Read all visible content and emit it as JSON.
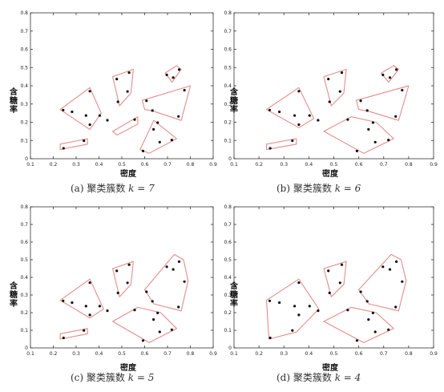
{
  "chart_data": [
    {
      "type": "scatter",
      "caption": "(a) 聚类簇数",
      "k": "k = 7",
      "xlabel": "密度",
      "ylabel": "含糖率",
      "xlim": [
        0.1,
        0.9
      ],
      "ylim": [
        0,
        0.8
      ],
      "xticks": [
        "0.1",
        "0.2",
        "0.3",
        "0.4",
        "0.5",
        "0.6",
        "0.7",
        "0.8",
        "0.9"
      ],
      "yticks": [
        "0",
        "0.1",
        "0.2",
        "0.3",
        "0.4",
        "0.5",
        "0.6",
        "0.7",
        "0.8"
      ],
      "points": [
        [
          0.243,
          0.267
        ],
        [
          0.245,
          0.057
        ],
        [
          0.282,
          0.257
        ],
        [
          0.334,
          0.099
        ],
        [
          0.343,
          0.237
        ],
        [
          0.36,
          0.37
        ],
        [
          0.36,
          0.187
        ],
        [
          0.403,
          0.237
        ],
        [
          0.437,
          0.211
        ],
        [
          0.478,
          0.437
        ],
        [
          0.483,
          0.312
        ],
        [
          0.525,
          0.369
        ],
        [
          0.532,
          0.472
        ],
        [
          0.556,
          0.215
        ],
        [
          0.593,
          0.042
        ],
        [
          0.608,
          0.318
        ],
        [
          0.634,
          0.264
        ],
        [
          0.639,
          0.161
        ],
        [
          0.657,
          0.198
        ],
        [
          0.666,
          0.091
        ],
        [
          0.697,
          0.46
        ],
        [
          0.719,
          0.103
        ],
        [
          0.725,
          0.445
        ],
        [
          0.748,
          0.232
        ],
        [
          0.751,
          0.489
        ],
        [
          0.774,
          0.376
        ]
      ],
      "clusters": [
        [
          [
            0.23,
            0.27
          ],
          [
            0.36,
            0.39
          ],
          [
            0.41,
            0.25
          ],
          [
            0.36,
            0.16
          ]
        ],
        [
          [
            0.23,
            0.05
          ],
          [
            0.35,
            0.08
          ],
          [
            0.35,
            0.11
          ],
          [
            0.23,
            0.08
          ]
        ],
        [
          [
            0.46,
            0.45
          ],
          [
            0.55,
            0.49
          ],
          [
            0.54,
            0.36
          ],
          [
            0.49,
            0.29
          ]
        ],
        [
          [
            0.46,
            0.15
          ],
          [
            0.57,
            0.23
          ],
          [
            0.57,
            0.19
          ],
          [
            0.48,
            0.13
          ]
        ],
        [
          [
            0.59,
            0.32
          ],
          [
            0.8,
            0.4
          ],
          [
            0.76,
            0.21
          ],
          [
            0.64,
            0.26
          ],
          [
            0.6,
            0.27
          ]
        ],
        [
          [
            0.58,
            0.05
          ],
          [
            0.64,
            0.21
          ],
          [
            0.74,
            0.11
          ],
          [
            0.62,
            0.03
          ]
        ],
        [
          [
            0.69,
            0.47
          ],
          [
            0.74,
            0.51
          ],
          [
            0.76,
            0.49
          ],
          [
            0.72,
            0.42
          ]
        ]
      ]
    },
    {
      "type": "scatter",
      "caption": "(b) 聚类簇数",
      "k": "k = 6",
      "xlabel": "密度",
      "ylabel": "含糖率",
      "xlim": [
        0.1,
        0.9
      ],
      "ylim": [
        0,
        0.8
      ],
      "xticks": [
        "0.1",
        "0.2",
        "0.3",
        "0.4",
        "0.5",
        "0.6",
        "0.7",
        "0.8",
        "0.9"
      ],
      "yticks": [
        "0",
        "0.1",
        "0.2",
        "0.3",
        "0.4",
        "0.5",
        "0.6",
        "0.7",
        "0.8"
      ],
      "points": [
        [
          0.243,
          0.267
        ],
        [
          0.245,
          0.057
        ],
        [
          0.282,
          0.257
        ],
        [
          0.334,
          0.099
        ],
        [
          0.343,
          0.237
        ],
        [
          0.36,
          0.37
        ],
        [
          0.36,
          0.187
        ],
        [
          0.403,
          0.237
        ],
        [
          0.437,
          0.211
        ],
        [
          0.478,
          0.437
        ],
        [
          0.483,
          0.312
        ],
        [
          0.525,
          0.369
        ],
        [
          0.532,
          0.472
        ],
        [
          0.556,
          0.215
        ],
        [
          0.593,
          0.042
        ],
        [
          0.608,
          0.318
        ],
        [
          0.634,
          0.264
        ],
        [
          0.639,
          0.161
        ],
        [
          0.657,
          0.198
        ],
        [
          0.666,
          0.091
        ],
        [
          0.697,
          0.46
        ],
        [
          0.719,
          0.103
        ],
        [
          0.725,
          0.445
        ],
        [
          0.748,
          0.232
        ],
        [
          0.751,
          0.489
        ],
        [
          0.774,
          0.376
        ]
      ],
      "clusters": [
        [
          [
            0.23,
            0.27
          ],
          [
            0.36,
            0.39
          ],
          [
            0.42,
            0.22
          ],
          [
            0.36,
            0.17
          ]
        ],
        [
          [
            0.23,
            0.05
          ],
          [
            0.35,
            0.08
          ],
          [
            0.35,
            0.11
          ],
          [
            0.23,
            0.08
          ]
        ],
        [
          [
            0.46,
            0.45
          ],
          [
            0.55,
            0.49
          ],
          [
            0.54,
            0.36
          ],
          [
            0.49,
            0.29
          ]
        ],
        [
          [
            0.46,
            0.15
          ],
          [
            0.57,
            0.23
          ],
          [
            0.67,
            0.2
          ],
          [
            0.74,
            0.11
          ],
          [
            0.62,
            0.03
          ]
        ],
        [
          [
            0.59,
            0.32
          ],
          [
            0.8,
            0.4
          ],
          [
            0.76,
            0.21
          ],
          [
            0.64,
            0.26
          ],
          [
            0.6,
            0.27
          ]
        ],
        [
          [
            0.69,
            0.47
          ],
          [
            0.74,
            0.51
          ],
          [
            0.76,
            0.49
          ],
          [
            0.72,
            0.42
          ]
        ]
      ]
    },
    {
      "type": "scatter",
      "caption": "(c) 聚类簇数",
      "k": "k = 5",
      "xlabel": "密度",
      "ylabel": "含糖率",
      "xlim": [
        0.1,
        0.9
      ],
      "ylim": [
        0,
        0.8
      ],
      "xticks": [
        "0.1",
        "0.2",
        "0.3",
        "0.4",
        "0.5",
        "0.6",
        "0.7",
        "0.8",
        "0.9"
      ],
      "yticks": [
        "0",
        "0.1",
        "0.2",
        "0.3",
        "0.4",
        "0.5",
        "0.6",
        "0.7",
        "0.8"
      ],
      "points": [
        [
          0.243,
          0.267
        ],
        [
          0.245,
          0.057
        ],
        [
          0.282,
          0.257
        ],
        [
          0.334,
          0.099
        ],
        [
          0.343,
          0.237
        ],
        [
          0.36,
          0.37
        ],
        [
          0.36,
          0.187
        ],
        [
          0.403,
          0.237
        ],
        [
          0.437,
          0.211
        ],
        [
          0.478,
          0.437
        ],
        [
          0.483,
          0.312
        ],
        [
          0.525,
          0.369
        ],
        [
          0.532,
          0.472
        ],
        [
          0.556,
          0.215
        ],
        [
          0.593,
          0.042
        ],
        [
          0.608,
          0.318
        ],
        [
          0.634,
          0.264
        ],
        [
          0.639,
          0.161
        ],
        [
          0.657,
          0.198
        ],
        [
          0.666,
          0.091
        ],
        [
          0.697,
          0.46
        ],
        [
          0.719,
          0.103
        ],
        [
          0.725,
          0.445
        ],
        [
          0.748,
          0.232
        ],
        [
          0.751,
          0.489
        ],
        [
          0.774,
          0.376
        ]
      ],
      "clusters": [
        [
          [
            0.23,
            0.27
          ],
          [
            0.36,
            0.39
          ],
          [
            0.42,
            0.22
          ],
          [
            0.36,
            0.17
          ]
        ],
        [
          [
            0.23,
            0.05
          ],
          [
            0.35,
            0.08
          ],
          [
            0.35,
            0.11
          ],
          [
            0.23,
            0.08
          ]
        ],
        [
          [
            0.46,
            0.45
          ],
          [
            0.55,
            0.49
          ],
          [
            0.54,
            0.36
          ],
          [
            0.49,
            0.29
          ]
        ],
        [
          [
            0.46,
            0.15
          ],
          [
            0.57,
            0.23
          ],
          [
            0.67,
            0.2
          ],
          [
            0.74,
            0.11
          ],
          [
            0.62,
            0.03
          ]
        ],
        [
          [
            0.6,
            0.33
          ],
          [
            0.73,
            0.53
          ],
          [
            0.77,
            0.5
          ],
          [
            0.79,
            0.38
          ],
          [
            0.76,
            0.21
          ],
          [
            0.64,
            0.25
          ]
        ]
      ]
    },
    {
      "type": "scatter",
      "caption": "(d) 聚类簇数",
      "k": "k = 4",
      "xlabel": "密度",
      "ylabel": "含糖率",
      "xlim": [
        0.1,
        0.9
      ],
      "ylim": [
        0,
        0.8
      ],
      "xticks": [
        "0.1",
        "0.2",
        "0.3",
        "0.4",
        "0.5",
        "0.6",
        "0.7",
        "0.8",
        "0.9"
      ],
      "yticks": [
        "0",
        "0.1",
        "0.2",
        "0.3",
        "0.4",
        "0.5",
        "0.6",
        "0.7",
        "0.8"
      ],
      "points": [
        [
          0.243,
          0.267
        ],
        [
          0.245,
          0.057
        ],
        [
          0.282,
          0.257
        ],
        [
          0.334,
          0.099
        ],
        [
          0.343,
          0.237
        ],
        [
          0.36,
          0.37
        ],
        [
          0.36,
          0.187
        ],
        [
          0.403,
          0.237
        ],
        [
          0.437,
          0.211
        ],
        [
          0.478,
          0.437
        ],
        [
          0.483,
          0.312
        ],
        [
          0.525,
          0.369
        ],
        [
          0.532,
          0.472
        ],
        [
          0.556,
          0.215
        ],
        [
          0.593,
          0.042
        ],
        [
          0.608,
          0.318
        ],
        [
          0.634,
          0.264
        ],
        [
          0.639,
          0.161
        ],
        [
          0.657,
          0.198
        ],
        [
          0.666,
          0.091
        ],
        [
          0.697,
          0.46
        ],
        [
          0.719,
          0.103
        ],
        [
          0.725,
          0.445
        ],
        [
          0.748,
          0.232
        ],
        [
          0.751,
          0.489
        ],
        [
          0.774,
          0.376
        ]
      ],
      "clusters": [
        [
          [
            0.23,
            0.27
          ],
          [
            0.36,
            0.39
          ],
          [
            0.44,
            0.22
          ],
          [
            0.35,
            0.09
          ],
          [
            0.24,
            0.05
          ]
        ],
        [
          [
            0.46,
            0.45
          ],
          [
            0.55,
            0.49
          ],
          [
            0.54,
            0.36
          ],
          [
            0.49,
            0.29
          ]
        ],
        [
          [
            0.46,
            0.15
          ],
          [
            0.57,
            0.23
          ],
          [
            0.67,
            0.2
          ],
          [
            0.74,
            0.11
          ],
          [
            0.62,
            0.03
          ]
        ],
        [
          [
            0.6,
            0.33
          ],
          [
            0.73,
            0.53
          ],
          [
            0.77,
            0.5
          ],
          [
            0.79,
            0.38
          ],
          [
            0.76,
            0.21
          ],
          [
            0.64,
            0.25
          ]
        ]
      ]
    }
  ],
  "colors": {
    "hull": "#e58c8c",
    "point": "#111111",
    "axis": "#333333"
  }
}
